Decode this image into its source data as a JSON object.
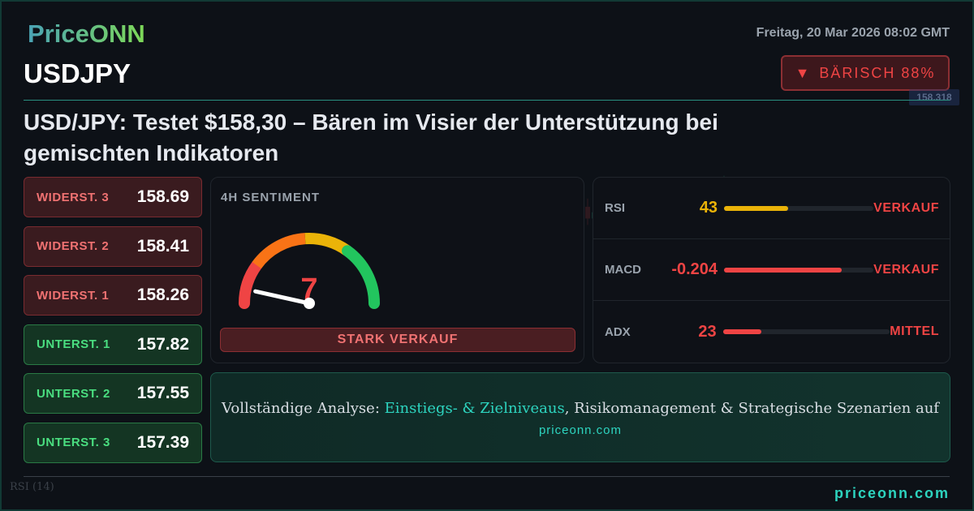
{
  "brand": {
    "logo": "PriceONN",
    "footer_url": "priceonn.com"
  },
  "header": {
    "date": "Freitag, 20 Mar 2026 08:02 GMT",
    "symbol": "USDJPY",
    "badge": {
      "icon": "triangle-down-icon",
      "label": "BÄRISCH 88%",
      "color": "#ef4444"
    }
  },
  "headline": "USD/JPY: Testet $158,30 – Bären im Visier der Unterstützung bei gemischten Indikatoren",
  "levels": [
    {
      "label": "WIDERST. 3",
      "value": "158.69",
      "type": "resistance"
    },
    {
      "label": "WIDERST. 2",
      "value": "158.41",
      "type": "resistance"
    },
    {
      "label": "WIDERST. 1",
      "value": "158.26",
      "type": "resistance"
    },
    {
      "label": "UNTERST. 1",
      "value": "157.82",
      "type": "support"
    },
    {
      "label": "UNTERST. 2",
      "value": "157.55",
      "type": "support"
    },
    {
      "label": "UNTERST. 3",
      "value": "157.39",
      "type": "support"
    }
  ],
  "sentiment": {
    "title": "4H SENTIMENT",
    "value": "7",
    "gauge_percent": 7,
    "label": "STARK VERKAUF"
  },
  "indicators": [
    {
      "name": "RSI",
      "value": "43",
      "fill_percent": 43,
      "color": "#eab308",
      "signal": "VERKAUF"
    },
    {
      "name": "MACD",
      "value": "-0.204",
      "fill_percent": 79,
      "color": "#ef4444",
      "signal": "VERKAUF"
    },
    {
      "name": "ADX",
      "value": "23",
      "fill_percent": 23,
      "color": "#ef4444",
      "signal": "MITTEL"
    }
  ],
  "cta": {
    "prefix": "Vollständige Analyse: ",
    "highlight": "Einstiegs- & Zielniveaus",
    "suffix": ", Risikomanagement & Strategische Szenarien auf",
    "url": "priceonn.com"
  },
  "background_chart": {
    "price_label": "158.318",
    "rsi_label": "RSI",
    "rsi_period": "(14)"
  }
}
